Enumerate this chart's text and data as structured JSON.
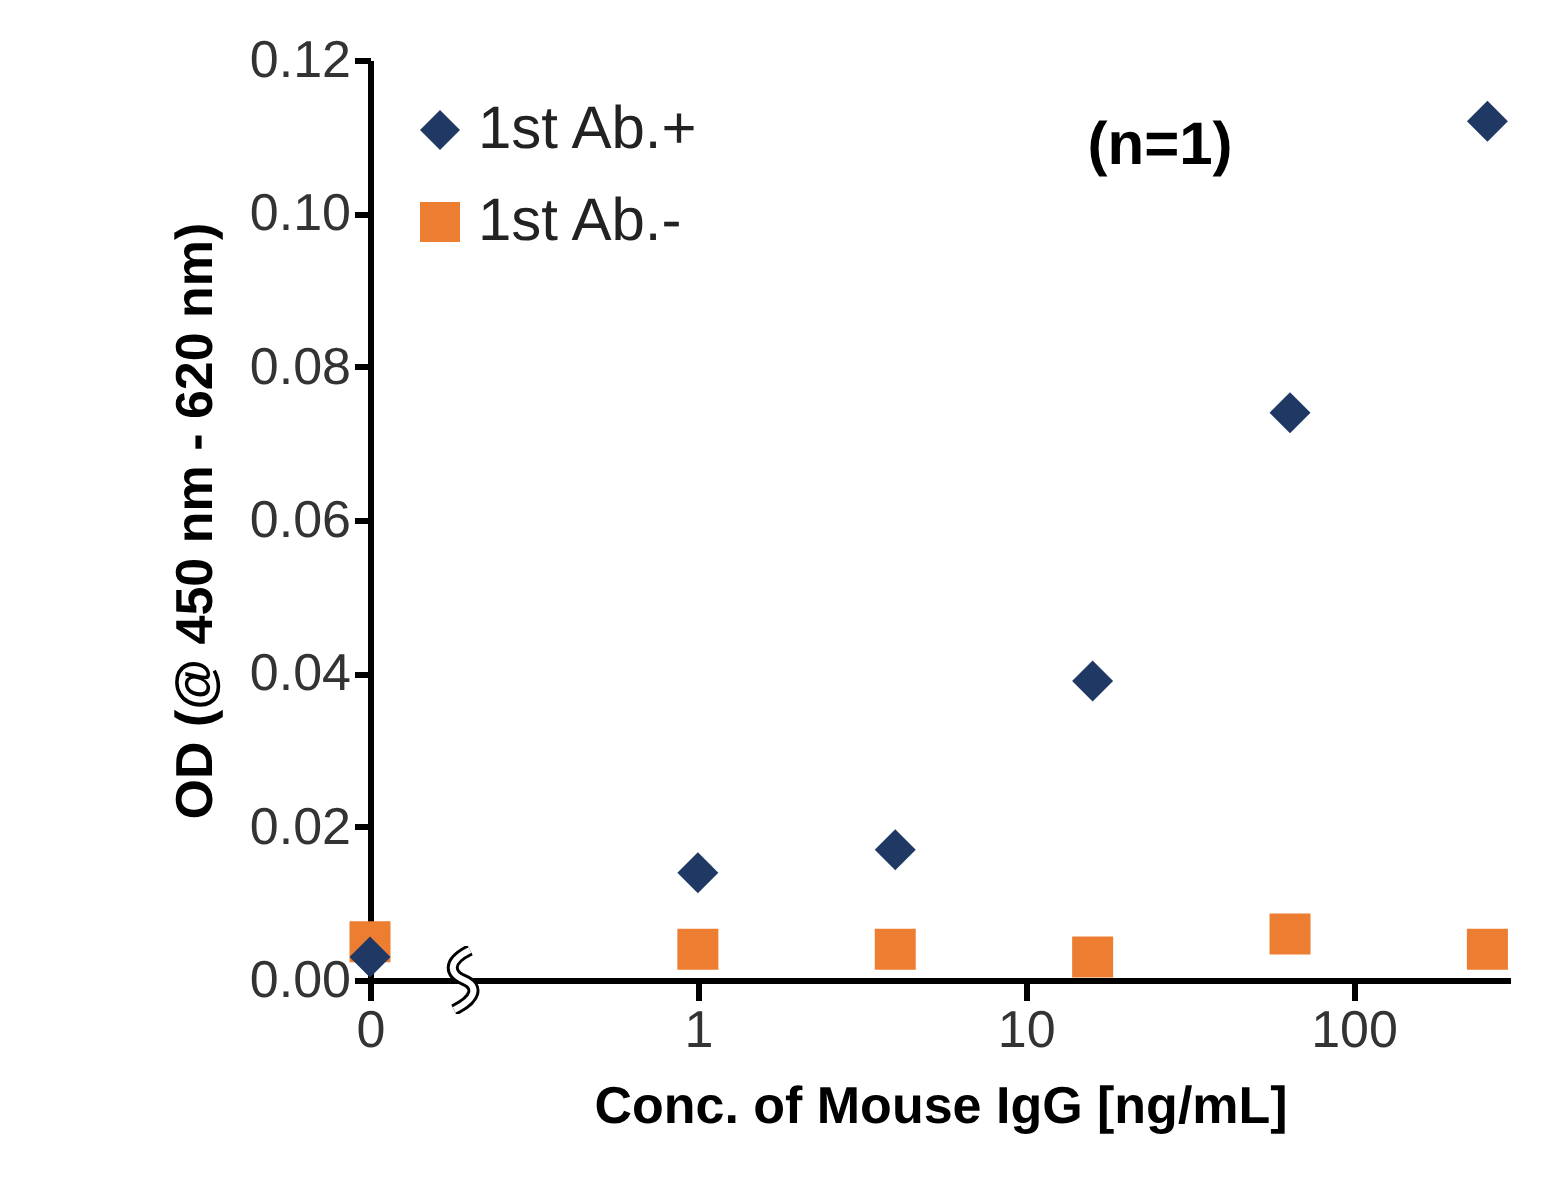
{
  "chart_data": {
    "type": "scatter",
    "xlabel": "Conc. of Mouse IgG [ng/mL]",
    "ylabel": "OD (@ 450 nm - 620 nm)",
    "annotations": [
      "(n=1)"
    ],
    "x": [
      0.1,
      1,
      4,
      16,
      64,
      256
    ],
    "series": [
      {
        "name": "1st Ab.+",
        "color": "#203864",
        "marker": "diamond",
        "values": [
          0.003,
          0.014,
          0.017,
          0.039,
          0.074,
          0.112
        ]
      },
      {
        "name": "1st Ab.-",
        "color": "#ed7d31",
        "marker": "square",
        "values": [
          0.005,
          0.004,
          0.004,
          0.003,
          0.006,
          0.004
        ]
      }
    ],
    "log": "x",
    "xlim": [
      0.1,
      300
    ],
    "xticks": [
      {
        "value": 0.1,
        "label": "0"
      },
      1,
      10,
      100
    ],
    "ylim": [
      0,
      0.12
    ],
    "yticks": [
      {
        "value": 0,
        "label": "0.00"
      },
      {
        "value": 0.02,
        "label": "0.02"
      },
      {
        "value": 0.04,
        "label": "0.04"
      },
      {
        "value": 0.06,
        "label": "0.06"
      },
      {
        "value": 0.08,
        "label": "0.08"
      },
      {
        "value": 0.1,
        "label": "0.10"
      },
      {
        "value": 0.12,
        "label": "0.12"
      }
    ],
    "legend": "top left",
    "grid": false
  }
}
